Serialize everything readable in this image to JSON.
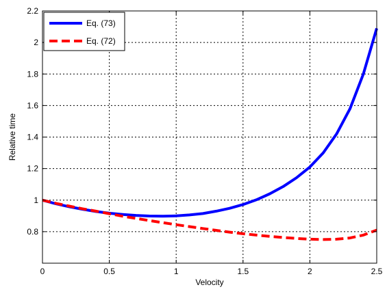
{
  "chart_data": {
    "type": "line",
    "xlabel": "Velocity",
    "ylabel": "Relative time",
    "xlim": [
      0,
      2.5
    ],
    "ylim": [
      0.6,
      2.2
    ],
    "xticks": [
      0,
      0.5,
      1,
      1.5,
      2,
      2.5
    ],
    "yticks": [
      0.8,
      1,
      1.2,
      1.4,
      1.6,
      1.8,
      2,
      2.2
    ],
    "xtick_labels": [
      "0",
      "0.5",
      "1",
      "1.5",
      "2",
      "2.5"
    ],
    "ytick_labels": [
      "0.8",
      "1",
      "1.2",
      "1.4",
      "1.6",
      "1.8",
      "2",
      "2.2"
    ],
    "grid": true,
    "legend_position": "top-left",
    "series": [
      {
        "name": "Eq. (73)",
        "color": "#0000ff",
        "style": "solid",
        "x": [
          0,
          0.1,
          0.2,
          0.3,
          0.4,
          0.5,
          0.6,
          0.7,
          0.8,
          0.9,
          1.0,
          1.1,
          1.2,
          1.3,
          1.4,
          1.5,
          1.6,
          1.7,
          1.8,
          1.9,
          2.0,
          2.1,
          2.2,
          2.3,
          2.4,
          2.5
        ],
        "y": [
          1.0,
          0.977,
          0.958,
          0.942,
          0.928,
          0.917,
          0.909,
          0.903,
          0.899,
          0.898,
          0.9,
          0.906,
          0.915,
          0.93,
          0.948,
          0.972,
          1.002,
          1.04,
          1.086,
          1.142,
          1.21,
          1.3,
          1.42,
          1.58,
          1.8,
          2.09
        ]
      },
      {
        "name": "Eq. (72)",
        "color": "#ff0000",
        "style": "dashed",
        "x": [
          0,
          0.1,
          0.2,
          0.3,
          0.4,
          0.5,
          0.6,
          0.7,
          0.8,
          0.9,
          1.0,
          1.1,
          1.2,
          1.3,
          1.4,
          1.5,
          1.6,
          1.7,
          1.8,
          1.9,
          2.0,
          2.1,
          2.2,
          2.3,
          2.4,
          2.5
        ],
        "y": [
          1.0,
          0.98,
          0.962,
          0.945,
          0.93,
          0.914,
          0.898,
          0.884,
          0.87,
          0.857,
          0.844,
          0.832,
          0.82,
          0.808,
          0.797,
          0.787,
          0.778,
          0.77,
          0.763,
          0.757,
          0.752,
          0.75,
          0.752,
          0.76,
          0.778,
          0.81
        ]
      }
    ]
  }
}
